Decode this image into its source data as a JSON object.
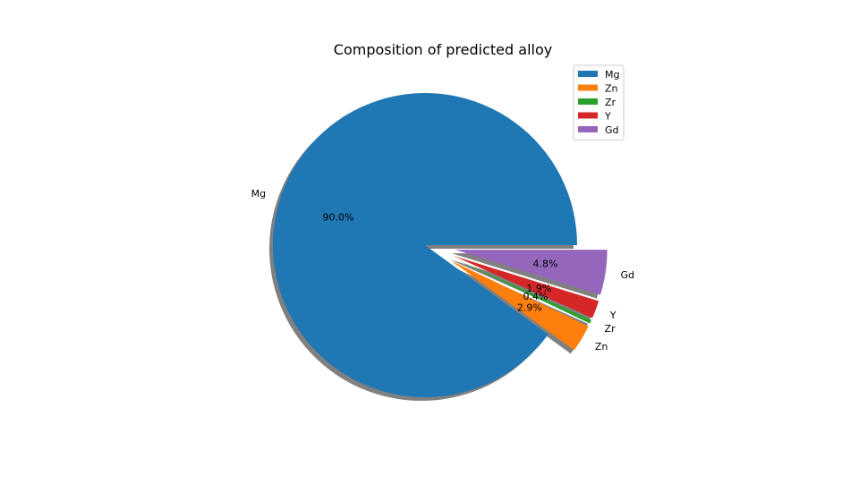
{
  "chart_data": {
    "type": "pie",
    "title": "Composition of predicted alloy",
    "labels": [
      "Mg",
      "Zn",
      "Zr",
      "Y",
      "Gd"
    ],
    "values": [
      90.0,
      2.9,
      0.4,
      1.9,
      4.8
    ],
    "pct_labels": [
      "90.0%",
      "2.9%",
      "0.4%",
      "1.9%",
      "4.8%"
    ],
    "colors": [
      "#1f77b4",
      "#ff7f0e",
      "#2ca02c",
      "#d62728",
      "#9467bd"
    ],
    "explode": [
      0,
      0.2,
      0.2,
      0.2,
      0.2
    ],
    "shadow": true,
    "start_angle_deg": 0,
    "legend": {
      "entries": [
        "Mg",
        "Zn",
        "Zr",
        "Y",
        "Gd"
      ],
      "placement": "upper-right"
    }
  }
}
